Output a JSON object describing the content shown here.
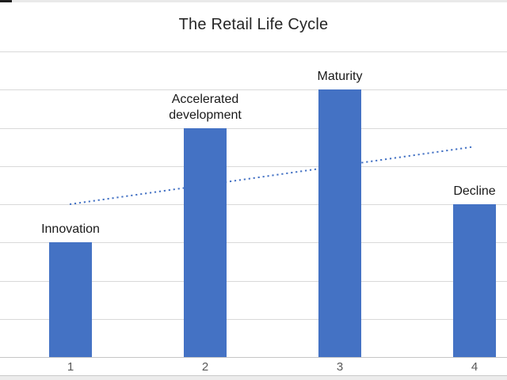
{
  "chart_data": {
    "type": "bar",
    "title": "The Retail Life Cycle",
    "categories": [
      "1",
      "2",
      "3",
      "4"
    ],
    "values": [
      3,
      6,
      7,
      4
    ],
    "point_labels": [
      "Innovation",
      "Accelerated development",
      "Maturity",
      "Decline"
    ],
    "xlabel": "",
    "ylabel": "",
    "ylim": [
      0,
      8
    ],
    "gridline_step": 1,
    "gridlines": true,
    "legend": "none",
    "y_tick_labels_visible": false,
    "trendline": {
      "style": "dotted",
      "y_start": 4.0,
      "y_end": 5.5
    },
    "colors": {
      "bar": "#4472C4",
      "trendline": "#4472C4",
      "gridline": "#D9D9D9",
      "axis_line": "#C6C6C6",
      "title_text": "#262626",
      "label_text": "#1A1A1A",
      "tick_text": "#595959"
    }
  },
  "frame": {
    "top_left_mark_color": "#1F1F1F",
    "edge_strip_color": "#E9E9E9"
  }
}
